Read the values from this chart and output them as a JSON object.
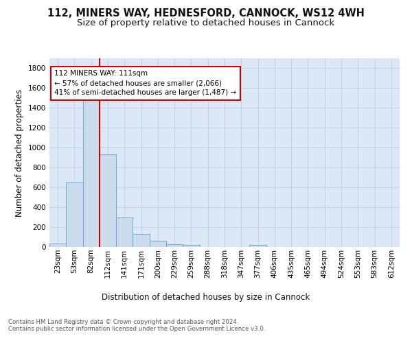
{
  "title_line1": "112, MINERS WAY, HEDNESFORD, CANNOCK, WS12 4WH",
  "title_line2": "Size of property relative to detached houses in Cannock",
  "xlabel": "Distribution of detached houses by size in Cannock",
  "ylabel": "Number of detached properties",
  "footnote": "Contains HM Land Registry data © Crown copyright and database right 2024.\nContains public sector information licensed under the Open Government Licence v3.0.",
  "bin_labels": [
    "23sqm",
    "53sqm",
    "82sqm",
    "112sqm",
    "141sqm",
    "171sqm",
    "200sqm",
    "229sqm",
    "259sqm",
    "288sqm",
    "318sqm",
    "347sqm",
    "377sqm",
    "406sqm",
    "435sqm",
    "465sqm",
    "494sqm",
    "524sqm",
    "553sqm",
    "583sqm",
    "612sqm"
  ],
  "bar_values": [
    35,
    650,
    1487,
    935,
    295,
    130,
    65,
    25,
    20,
    0,
    0,
    0,
    20,
    0,
    0,
    0,
    0,
    0,
    0,
    0,
    0
  ],
  "bar_color": "#ccdcec",
  "bar_edge_color": "#6aaad4",
  "annotation_box_text": "112 MINERS WAY: 111sqm\n← 57% of detached houses are smaller (2,066)\n41% of semi-detached houses are larger (1,487) →",
  "annotation_box_color": "#ffffff",
  "annotation_box_edge_color": "#cc0000",
  "vline_color": "#cc0000",
  "ylim": [
    0,
    1900
  ],
  "yticks": [
    0,
    200,
    400,
    600,
    800,
    1000,
    1200,
    1400,
    1600,
    1800
  ],
  "background_color": "#ffffff",
  "axes_bg_color": "#dce8f5",
  "grid_color": "#b8cfe0",
  "title_fontsize": 10.5,
  "subtitle_fontsize": 9.5,
  "axis_label_fontsize": 8.5,
  "tick_fontsize": 7.5,
  "footnote_fontsize": 6.2
}
